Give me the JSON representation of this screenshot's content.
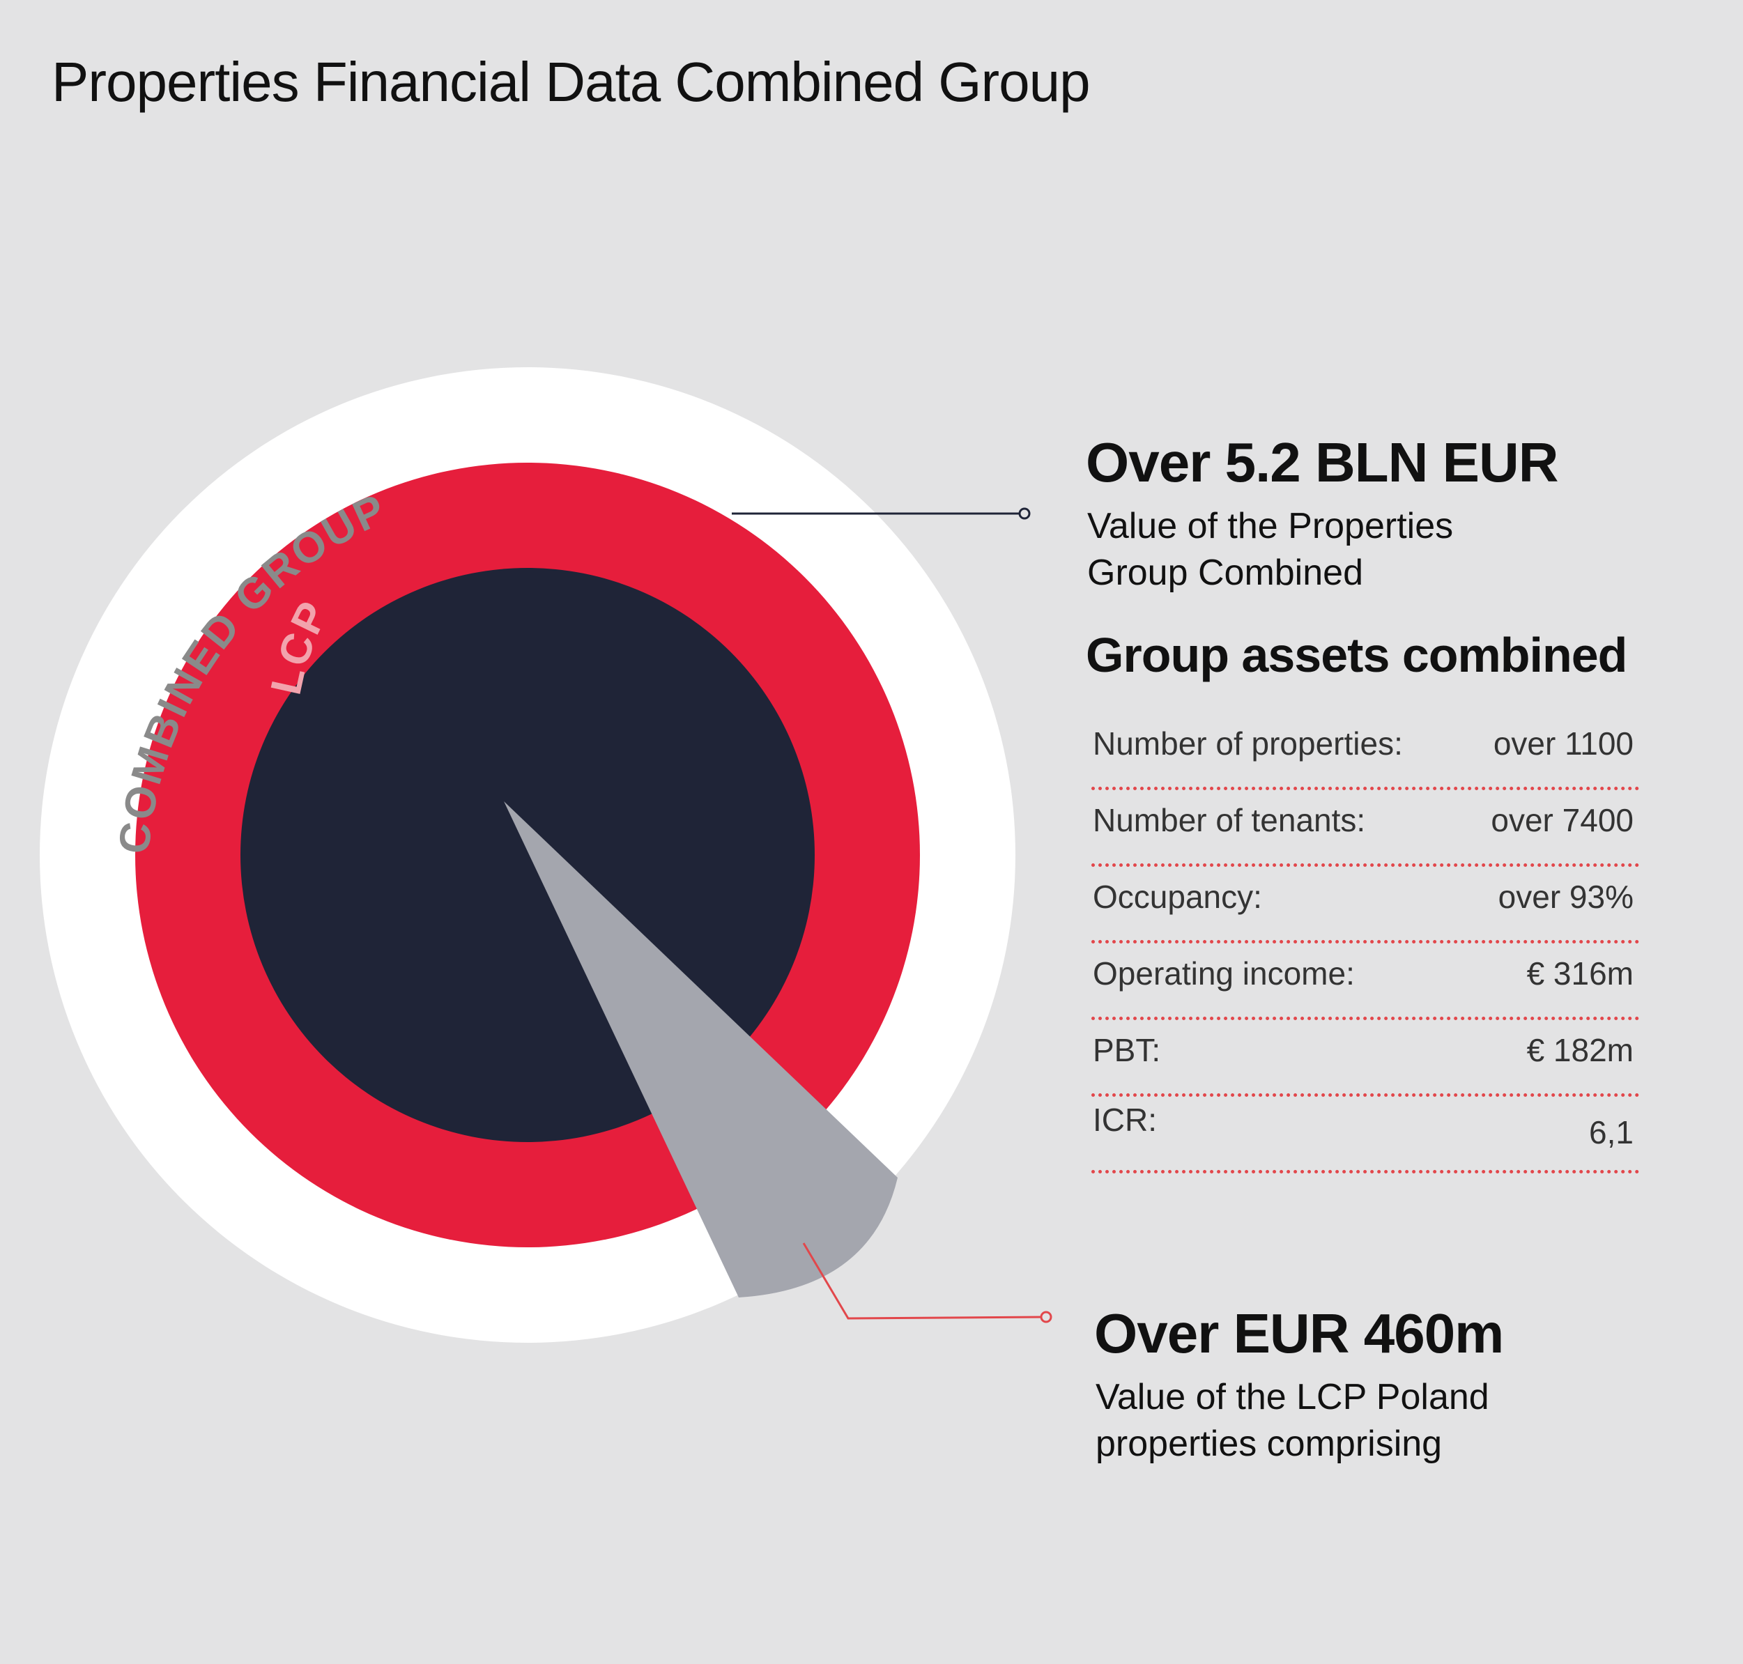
{
  "title": "Properties Financial Data Combined Group",
  "rings": {
    "outer_label": "COMBINED GROUP",
    "inner_label": "LCP",
    "colors": {
      "outer": "#ffffff",
      "middle": "#e61e3c",
      "core": "#1f2437",
      "wedge": "#a4a6ae",
      "outer_label": "#8a8a8a",
      "inner_label": "#f2a3ad",
      "leader_dark": "#1f2437",
      "leader_red": "#e2474b"
    }
  },
  "combined_value": {
    "headline": "Over 5.2 BLN EUR",
    "line1": "Value of the Properties",
    "line2": "Group Combined"
  },
  "assets": {
    "heading": "Group assets combined",
    "rows": [
      {
        "label": "Number of properties:",
        "value": "over 1100"
      },
      {
        "label": "Number of tenants:",
        "value": "over 7400"
      },
      {
        "label": "Occupancy:",
        "value": "over 93%"
      },
      {
        "label": "Operating income:",
        "value": "€ 316m"
      },
      {
        "label": "PBT:",
        "value": "€ 182m"
      },
      {
        "label": "ICR:",
        "value": "6,1"
      }
    ]
  },
  "lcp_value": {
    "headline": "Over EUR 460m",
    "line1": "Value of the LCP Poland",
    "line2": "properties comprising"
  }
}
